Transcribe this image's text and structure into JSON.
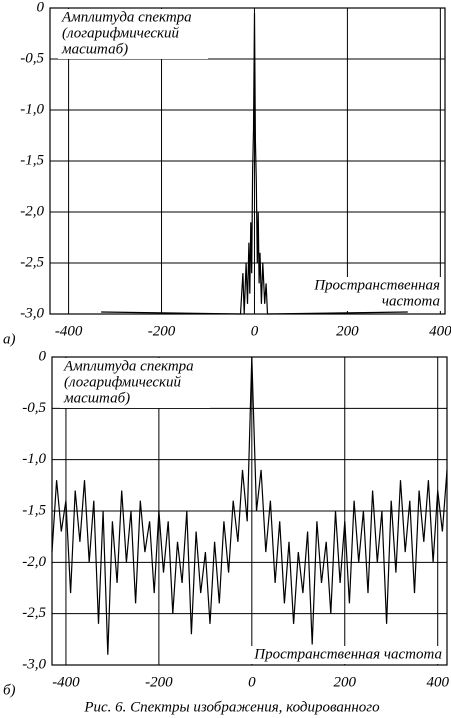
{
  "chart_data": [
    {
      "type": "line",
      "label": "a)",
      "y_label_lines": [
        "Амплитуда спектра",
        "(логарифмический",
        "масштаб)"
      ],
      "x_label_lines": [
        "Пространственная",
        "частота"
      ],
      "xlim": [
        -440,
        410
      ],
      "ylim": [
        -3.0,
        0
      ],
      "xticks": [
        -400,
        -200,
        0,
        200,
        400
      ],
      "yticks": [
        0,
        {
          "value": -0.5,
          "label": "-0,5"
        },
        {
          "value": -1.0,
          "label": "-1,0"
        },
        {
          "value": -1.5,
          "label": "-1,5"
        },
        {
          "value": -2.0,
          "label": "-2,0"
        },
        {
          "value": -2.5,
          "label": "-2,5"
        },
        {
          "value": -3.0,
          "label": "-3,0"
        }
      ],
      "grid": true,
      "color": "#000000",
      "x": [
        -330,
        -30,
        -25,
        -22,
        -18,
        -15,
        -12,
        -10,
        -8,
        -6,
        -4,
        -2,
        0,
        2,
        4,
        6,
        8,
        10,
        12,
        15,
        18,
        22,
        25,
        28,
        330
      ],
      "values": [
        -2.98,
        -3.0,
        -2.6,
        -3.0,
        -2.5,
        -2.9,
        -2.3,
        -2.8,
        -2.1,
        -2.6,
        -1.6,
        -1.2,
        -0.05,
        -1.3,
        -1.7,
        -2.5,
        -2.0,
        -2.7,
        -2.4,
        -2.9,
        -2.5,
        -2.9,
        -2.7,
        -3.0,
        -2.98
      ]
    },
    {
      "type": "line",
      "label": "б)",
      "y_label_lines": [
        "Амплитуда спектра",
        "(логарифмический",
        "масштаб)"
      ],
      "x_label_lines": [
        "Пространственная частота"
      ],
      "xlim": [
        -430,
        420
      ],
      "ylim": [
        -3.0,
        0
      ],
      "xticks": [
        -400,
        -200,
        0,
        200,
        400
      ],
      "yticks": [
        0,
        {
          "value": -0.5,
          "label": "-0,5"
        },
        {
          "value": -1.0,
          "label": "-1,0"
        },
        {
          "value": -1.5,
          "label": "-1,5"
        },
        {
          "value": -2.0,
          "label": "-2,0"
        },
        {
          "value": -2.5,
          "label": "-2,5"
        },
        {
          "value": -3.0,
          "label": "-3,0"
        }
      ],
      "grid": true,
      "color": "#000000",
      "x": [
        -430,
        -420,
        -410,
        -400,
        -390,
        -380,
        -370,
        -360,
        -350,
        -340,
        -330,
        -320,
        -310,
        -300,
        -290,
        -280,
        -270,
        -260,
        -250,
        -240,
        -230,
        -220,
        -210,
        -200,
        -190,
        -180,
        -170,
        -160,
        -150,
        -140,
        -130,
        -120,
        -110,
        -100,
        -90,
        -80,
        -70,
        -60,
        -50,
        -40,
        -30,
        -20,
        -10,
        0,
        10,
        20,
        30,
        40,
        50,
        60,
        70,
        80,
        90,
        100,
        110,
        120,
        130,
        140,
        150,
        160,
        170,
        180,
        190,
        200,
        210,
        220,
        230,
        240,
        250,
        260,
        270,
        280,
        290,
        300,
        310,
        320,
        330,
        340,
        350,
        360,
        370,
        380,
        390,
        400,
        410,
        420
      ],
      "values": [
        -1.9,
        -1.2,
        -1.7,
        -1.4,
        -2.3,
        -1.3,
        -1.8,
        -1.2,
        -2.0,
        -1.4,
        -2.6,
        -1.5,
        -2.9,
        -1.6,
        -2.2,
        -1.3,
        -2.0,
        -1.5,
        -2.4,
        -1.4,
        -1.9,
        -1.6,
        -2.3,
        -1.5,
        -2.1,
        -1.6,
        -2.5,
        -1.8,
        -2.2,
        -1.5,
        -2.7,
        -1.7,
        -2.3,
        -1.9,
        -2.6,
        -1.8,
        -2.4,
        -1.6,
        -2.1,
        -1.4,
        -1.8,
        -1.1,
        -1.6,
        0,
        -1.5,
        -1.1,
        -1.9,
        -1.4,
        -2.2,
        -1.6,
        -2.4,
        -1.8,
        -2.6,
        -1.9,
        -2.3,
        -1.7,
        -2.8,
        -1.6,
        -2.2,
        -1.8,
        -2.5,
        -1.5,
        -2.2,
        -1.6,
        -2.4,
        -1.4,
        -2.0,
        -1.5,
        -2.3,
        -1.3,
        -2.0,
        -1.5,
        -2.6,
        -1.4,
        -2.1,
        -1.2,
        -1.9,
        -1.4,
        -2.3,
        -1.3,
        -1.8,
        -1.2,
        -2.0,
        -1.3,
        -1.7,
        -1.1
      ]
    }
  ],
  "caption": "Рис. 6. Спектры изображения, кодированного"
}
